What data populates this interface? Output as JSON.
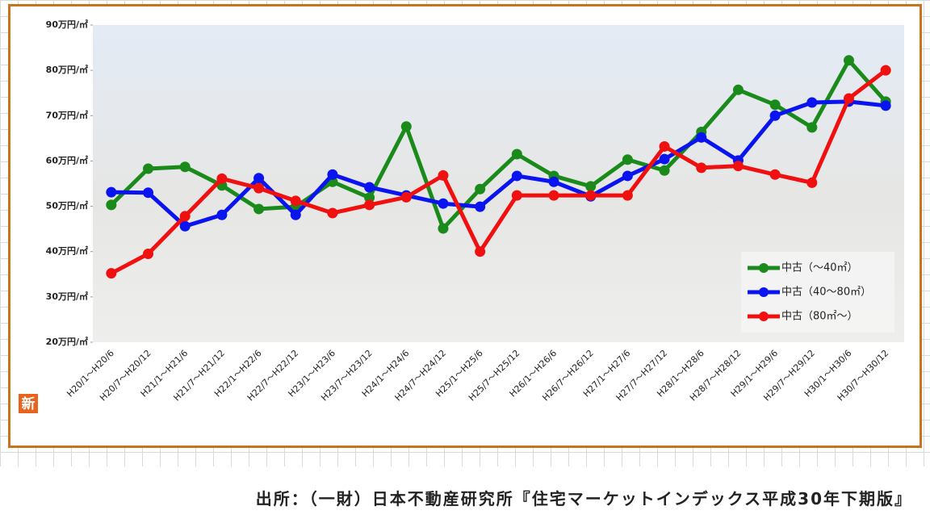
{
  "chart_data": {
    "type": "line",
    "categories": [
      "H20/1～H20/6",
      "H20/7～H20/12",
      "H21/1～H21/6",
      "H21/7～H21/12",
      "H22/1～H22/6",
      "H22/7～H22/12",
      "H23/1～H23/6",
      "H23/7～H23/12",
      "H24/1～H24/6",
      "H24/7～H24/12",
      "H25/1～H25/6",
      "H25/7～H25/12",
      "H26/1～H26/6",
      "H26/7～H26/12",
      "H27/1～H27/6",
      "H27/7～H27/12",
      "H28/1～H28/6",
      "H28/7～H28/12",
      "H29/1～H29/6",
      "H29/7～H29/12",
      "H30/1～H30/6",
      "H30/7～H30/12"
    ],
    "series": [
      {
        "name": "中古（～40㎡）",
        "color": "#1a8a1a",
        "values": [
          50.3,
          58.3,
          58.7,
          54.6,
          49.4,
          49.9,
          55.4,
          51.9,
          67.6,
          45.1,
          53.8,
          61.5,
          56.7,
          54.4,
          60.3,
          57.9,
          66.4,
          75.7,
          72.4,
          67.4,
          82.2,
          73.1
        ]
      },
      {
        "name": "中古（40～80㎡）",
        "color": "#0a14f0",
        "values": [
          53.1,
          53.0,
          45.6,
          48.1,
          56.2,
          48.1,
          57.0,
          54.2,
          52.4,
          50.6,
          49.9,
          56.7,
          55.4,
          52.2,
          56.7,
          60.4,
          65.2,
          60.1,
          70.0,
          72.9,
          73.1,
          72.2
        ]
      },
      {
        "name": "中古（80㎡～）",
        "color": "#f01010",
        "values": [
          35.2,
          39.5,
          47.8,
          56.1,
          54.0,
          51.2,
          48.5,
          50.3,
          52.0,
          56.8,
          40.0,
          52.4,
          52.4,
          52.4,
          52.4,
          63.2,
          58.5,
          58.9,
          57.0,
          55.2,
          73.8,
          80.0
        ]
      }
    ],
    "ylim": [
      20,
      90
    ],
    "yticks": [
      {
        "value": 20,
        "label": "20万円/㎡"
      },
      {
        "value": 30,
        "label": "30万円/㎡"
      },
      {
        "value": 40,
        "label": "40万円/㎡"
      },
      {
        "value": 50,
        "label": "50万円/㎡"
      },
      {
        "value": 60,
        "label": "60万円/㎡"
      },
      {
        "value": 70,
        "label": "70万円/㎡"
      },
      {
        "value": 80,
        "label": "80万円/㎡"
      },
      {
        "value": 90,
        "label": "90万円/㎡"
      }
    ],
    "grid": false,
    "legend": "lower right"
  },
  "badge": "新",
  "source": "出所：（一財）日本不動産研究所『住宅マーケットインデックス平成30年下期版』"
}
